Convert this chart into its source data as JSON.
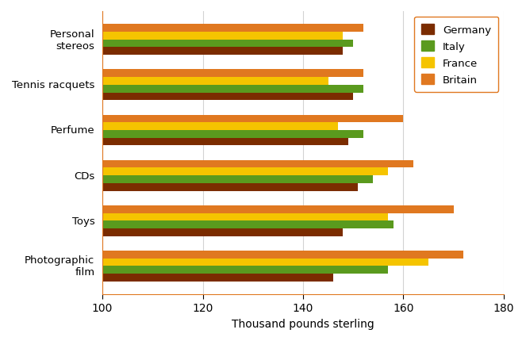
{
  "categories": [
    "Personal\nstereos",
    "Tennis racquets",
    "Perfume",
    "CDs",
    "Toys",
    "Photographic\nfilm"
  ],
  "series": {
    "Germany": [
      148,
      150,
      149,
      151,
      148,
      146
    ],
    "Italy": [
      150,
      152,
      152,
      154,
      158,
      157
    ],
    "France": [
      148,
      145,
      147,
      157,
      157,
      165
    ],
    "Britain": [
      152,
      152,
      160,
      162,
      170,
      172
    ]
  },
  "colors": {
    "Germany": "#7B2C00",
    "Italy": "#5A9A1E",
    "France": "#F5C400",
    "Britain": "#E07820"
  },
  "legend_order": [
    "Germany",
    "Italy",
    "France",
    "Britain"
  ],
  "xlabel": "Thousand pounds sterling",
  "xlim": [
    100,
    180
  ],
  "xbase": 100,
  "xticks": [
    100,
    120,
    140,
    160,
    180
  ],
  "background_color": "#ffffff",
  "bar_height": 0.17,
  "spine_color": "#E07820"
}
